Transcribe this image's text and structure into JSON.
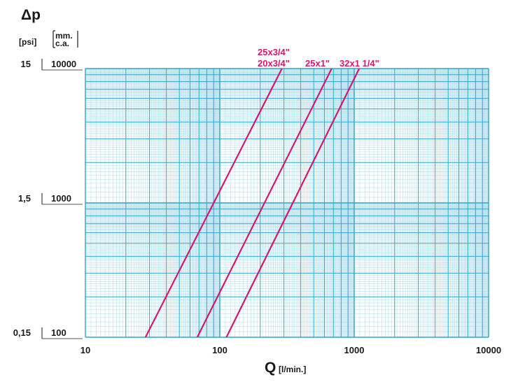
{
  "chart_data": {
    "type": "line",
    "title": "",
    "ylabel": "Δp",
    "y_units": [
      "[psi]",
      "mm.",
      "c.a."
    ],
    "xlabel": "Q",
    "x_unit": "[l/min.]",
    "x_scale": "log",
    "y_scale": "log",
    "xlim": [
      10,
      10000
    ],
    "ylim": [
      100,
      10000
    ],
    "grid": true,
    "x_ticks": [
      {
        "value": 10,
        "label": "10"
      },
      {
        "value": 100,
        "label": "100"
      },
      {
        "value": 1000,
        "label": "1000"
      },
      {
        "value": 10000,
        "label": "10000"
      }
    ],
    "y_ticks": [
      {
        "value": 100,
        "label": "100",
        "psi": "0,15"
      },
      {
        "value": 1000,
        "label": "1000",
        "psi": "1,5"
      },
      {
        "value": 10000,
        "label": "10000",
        "psi": "15"
      }
    ],
    "series": [
      {
        "name": "25x3/4\"",
        "name2": "20x3/4\"",
        "x": [
          28,
          290
        ],
        "y": [
          100,
          10000
        ]
      },
      {
        "name": "25x1\"",
        "x": [
          68,
          680
        ],
        "y": [
          100,
          10000
        ]
      },
      {
        "name": "32x1 1/4\"",
        "x": [
          112,
          1090
        ],
        "y": [
          100,
          10000
        ]
      }
    ],
    "colors": {
      "series": "#d6176f",
      "grid_major": "#2fa8cc",
      "grid_minor": "#a9dbea",
      "text": "#1a1a1a"
    }
  }
}
